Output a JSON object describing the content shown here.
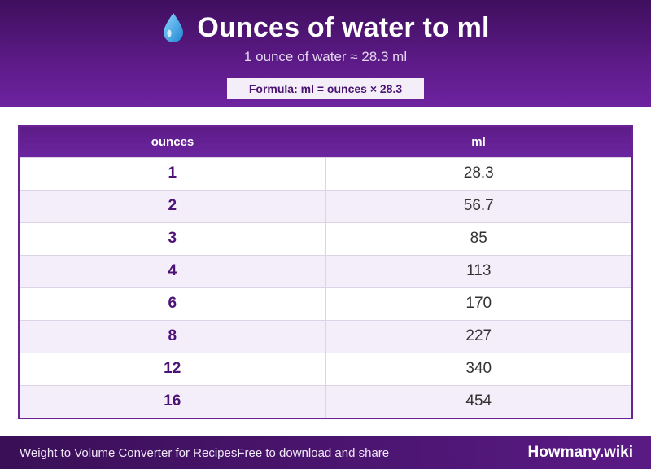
{
  "header": {
    "icon": "water-drop-icon",
    "title": "Ounces of water to ml",
    "subtitle": "1 ounce of water ≈ 28.3 ml",
    "formula": "Formula: ml = ounces × 28.3"
  },
  "table": {
    "columns": [
      "ounces",
      "ml"
    ],
    "rows": [
      {
        "ounces": "1",
        "ml": "28.3"
      },
      {
        "ounces": "2",
        "ml": "56.7"
      },
      {
        "ounces": "3",
        "ml": "85"
      },
      {
        "ounces": "4",
        "ml": "113"
      },
      {
        "ounces": "6",
        "ml": "170"
      },
      {
        "ounces": "8",
        "ml": "227"
      },
      {
        "ounces": "12",
        "ml": "340"
      },
      {
        "ounces": "16",
        "ml": "454"
      }
    ]
  },
  "footer": {
    "left_text": "Weight to Volume Converter for RecipesFree to download and share",
    "brand": "Howmany.wiki"
  },
  "colors": {
    "primary": "#5b1a85",
    "accent_text": "#4d1275",
    "row_alt": "#f4eefa",
    "drop": "#3aa8e8"
  }
}
